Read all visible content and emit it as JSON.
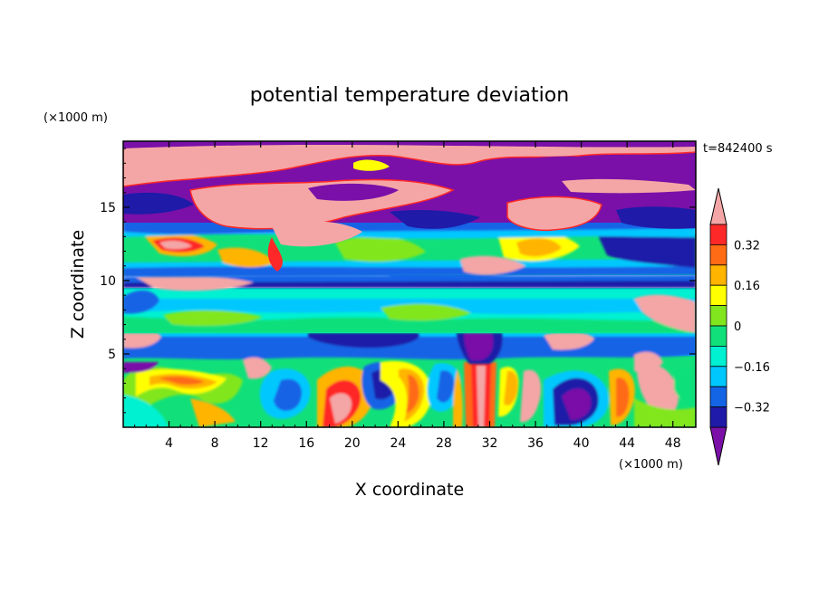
{
  "chart_data": {
    "type": "heatmap",
    "title": "potential temperature deviation",
    "xlabel": "X coordinate",
    "ylabel": "Z coordinate",
    "x_unit": "(×1000 m)",
    "y_unit": "(×1000 m)",
    "time_label": "t=842400 s",
    "xlim": [
      0,
      50
    ],
    "ylim": [
      0,
      19.5
    ],
    "x_ticks": [
      4,
      8,
      12,
      16,
      20,
      24,
      28,
      32,
      36,
      40,
      44,
      48
    ],
    "y_ticks": [
      5,
      10,
      15
    ],
    "colorbar": {
      "levels": [
        -0.4,
        -0.32,
        -0.24,
        -0.16,
        -0.08,
        0,
        0.08,
        0.16,
        0.24,
        0.32,
        0.4
      ],
      "tick_labels": [
        "0.32",
        "0.16",
        "0",
        "−0.16",
        "−0.32"
      ],
      "colors": [
        "#7a10a8",
        "#1f1aa8",
        "#1464e6",
        "#00c8ff",
        "#00f0d2",
        "#11e07a",
        "#82e61e",
        "#ffff00",
        "#ffb400",
        "#ff6a14",
        "#ff2828",
        "#f4a6a6"
      ],
      "extend": "both"
    },
    "regions": [
      {
        "band": "upper layer (z 13–19.5)",
        "description_values": "alternating -0.4 and +0.4 extremes"
      },
      {
        "band": "z 10–13",
        "dominant_value": 0.04
      },
      {
        "band": "z 5–10",
        "dominant_value": -0.1
      },
      {
        "band": "z 0–5",
        "dominant_value": 0.0
      }
    ]
  }
}
